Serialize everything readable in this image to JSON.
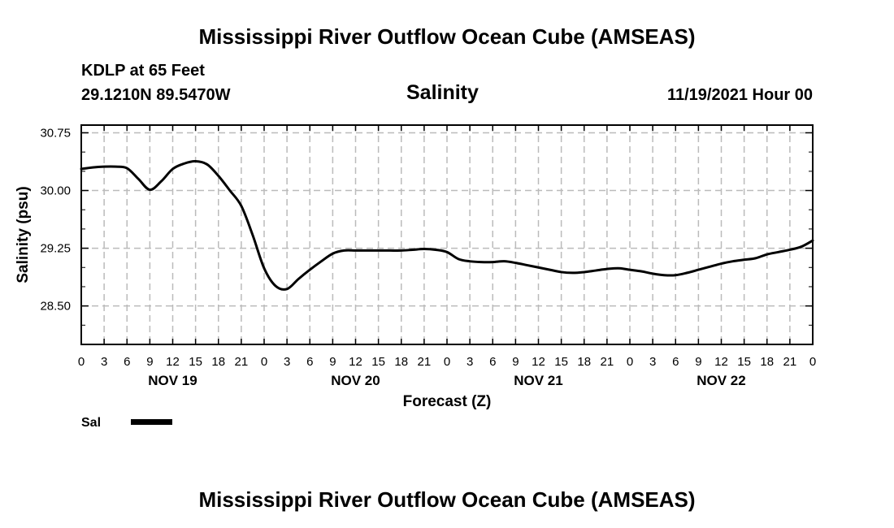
{
  "page": {
    "title": "Mississippi River Outflow Ocean Cube (AMSEAS)",
    "station": "KDLP at 65 Feet",
    "coordinates": "29.1210N  89.5470W",
    "variable": "Salinity",
    "datetime": "11/19/2021 Hour 00",
    "footer_title": "Mississippi River Outflow Ocean Cube (AMSEAS)"
  },
  "chart_data": {
    "type": "line",
    "title": "Salinity",
    "xlabel": "Forecast (Z)",
    "ylabel": "Salinity (psu)",
    "ylim": [
      28.0,
      30.85
    ],
    "yticks": [
      28.5,
      29.25,
      30.0,
      30.75
    ],
    "ytick_labels": [
      "28.50",
      "29.25",
      "30.00",
      "30.75"
    ],
    "xlim": [
      0,
      96
    ],
    "x_step_hours": 3,
    "xtick_labels": [
      "0",
      "3",
      "6",
      "9",
      "12",
      "15",
      "18",
      "21",
      "0",
      "3",
      "6",
      "9",
      "12",
      "15",
      "18",
      "21",
      "0",
      "3",
      "6",
      "9",
      "12",
      "15",
      "18",
      "21",
      "0",
      "3",
      "6",
      "9",
      "12",
      "15",
      "18",
      "21",
      "0"
    ],
    "day_labels": [
      {
        "hour": 12,
        "label": "NOV 19"
      },
      {
        "hour": 36,
        "label": "NOV 20"
      },
      {
        "hour": 60,
        "label": "NOV 21"
      },
      {
        "hour": 84,
        "label": "NOV 22"
      }
    ],
    "grid": true,
    "legend": [
      {
        "name": "Sal",
        "color": "#000000"
      }
    ],
    "series": [
      {
        "name": "Sal",
        "x": [
          0,
          1.5,
          3,
          4.5,
          6,
          7.5,
          9,
          10.5,
          12,
          13.5,
          15,
          16.5,
          18,
          19.5,
          21,
          22.5,
          24,
          25.5,
          27,
          28.5,
          30,
          31.5,
          33,
          34.5,
          36,
          37.5,
          39,
          40.5,
          42,
          43.5,
          45,
          46.5,
          48,
          49.5,
          51,
          52.5,
          54,
          55.5,
          57,
          58.5,
          60,
          61.5,
          63,
          64.5,
          66,
          67.5,
          69,
          70.5,
          72,
          73.5,
          75,
          76.5,
          78,
          79.5,
          81,
          82.5,
          84,
          85.5,
          87,
          88.5,
          90,
          91.5,
          93,
          94.5,
          96
        ],
        "values": [
          30.28,
          30.3,
          30.31,
          30.31,
          30.29,
          30.15,
          30.01,
          30.12,
          30.28,
          30.35,
          30.38,
          30.34,
          30.19,
          30.0,
          29.8,
          29.42,
          28.99,
          28.76,
          28.72,
          28.85,
          28.97,
          29.08,
          29.18,
          29.22,
          29.22,
          29.22,
          29.22,
          29.22,
          29.22,
          29.23,
          29.24,
          29.23,
          29.2,
          29.11,
          29.08,
          29.07,
          29.07,
          29.08,
          29.06,
          29.03,
          29.0,
          28.97,
          28.94,
          28.93,
          28.94,
          28.96,
          28.98,
          28.99,
          28.97,
          28.95,
          28.92,
          28.9,
          28.9,
          28.93,
          28.97,
          29.01,
          29.05,
          29.08,
          29.1,
          29.12,
          29.17,
          29.2,
          29.23,
          29.27,
          29.35
        ]
      }
    ]
  }
}
